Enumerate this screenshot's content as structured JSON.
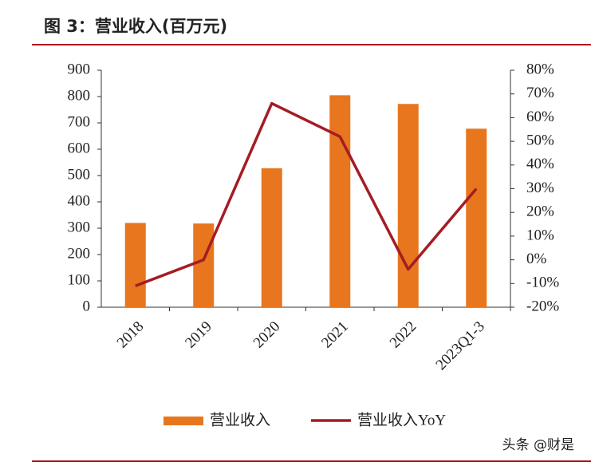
{
  "chart_data": {
    "type": "bar",
    "title": "图 3：营业收入(百万元)",
    "categories": [
      "2018",
      "2019",
      "2020",
      "2021",
      "2022",
      "2023Q1-3"
    ],
    "series": [
      {
        "name": "营业收入",
        "type": "bar",
        "color": "#e8761e",
        "values": [
          320,
          318,
          528,
          805,
          772,
          678
        ]
      },
      {
        "name": "营业收入YoY",
        "type": "line",
        "axis": "y2",
        "color": "#a51c24",
        "values": [
          -11,
          0,
          66,
          52,
          -4,
          30
        ]
      }
    ],
    "ylim": [
      0,
      900
    ],
    "yticks": [
      0,
      100,
      200,
      300,
      400,
      500,
      600,
      700,
      800,
      900
    ],
    "y2lim": [
      -20,
      80
    ],
    "y2ticks": [
      {
        "value": -20,
        "label": "-20%"
      },
      {
        "value": -10,
        "label": "-10%"
      },
      {
        "value": 0,
        "label": "0%"
      },
      {
        "value": 10,
        "label": "10%"
      },
      {
        "value": 20,
        "label": "20%"
      },
      {
        "value": 30,
        "label": "30%"
      },
      {
        "value": 40,
        "label": "40%"
      },
      {
        "value": 50,
        "label": "50%"
      },
      {
        "value": 60,
        "label": "60%"
      },
      {
        "value": 70,
        "label": "70%"
      },
      {
        "value": 80,
        "label": "80%"
      }
    ],
    "grid": false
  },
  "watermark": "头条 @财是"
}
